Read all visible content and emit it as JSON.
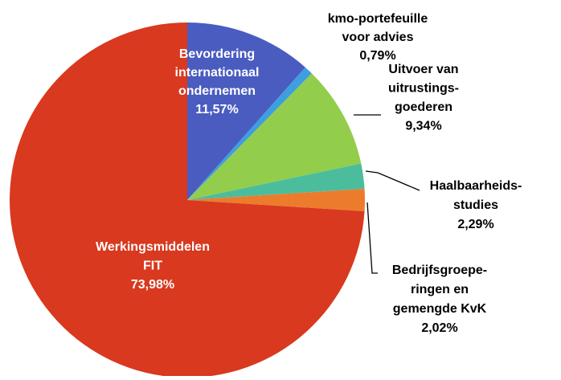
{
  "chart_data": {
    "type": "pie",
    "categories": [
      [
        "Bevordering",
        "internationaal",
        "ondernemen"
      ],
      [
        "kmo-portefeuille",
        "voor advies"
      ],
      [
        "Uitvoer van",
        "uitrustings-",
        "goederen"
      ],
      [
        "Haalbaarheids-",
        "studies"
      ],
      [
        "Bedrijfsgroepe-",
        "ringen en",
        "gemengde  KvK"
      ],
      [
        "Werkingsmiddelen",
        "FIT"
      ]
    ],
    "values": [
      11.57,
      0.79,
      9.34,
      2.29,
      2.02,
      73.98
    ],
    "value_labels": [
      "11,57%",
      "0,79%",
      "9,34%",
      "2,29%",
      "2,02%",
      "73,98%"
    ],
    "colors": [
      "#4a5cc0",
      "#3d9fe0",
      "#93cd4c",
      "#4bbd9d",
      "#ec7c2c",
      "#d8391f"
    ]
  }
}
